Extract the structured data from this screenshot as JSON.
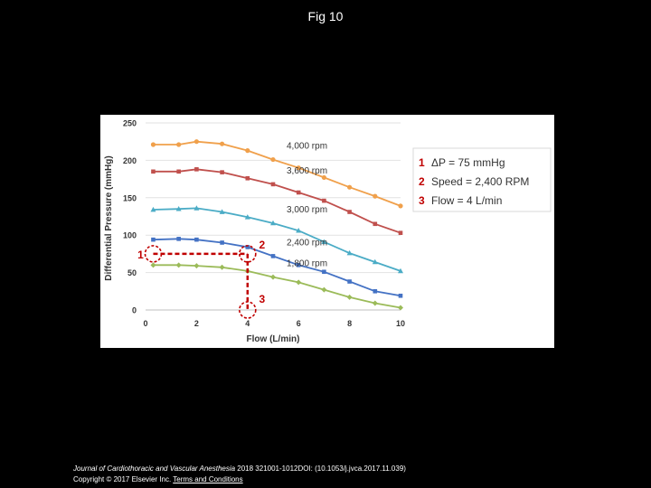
{
  "slide": {
    "title": "Fig 10"
  },
  "footer": {
    "journal": "Journal of Cardiothoracic and Vascular Anesthesia",
    "citation": " 2018 321001-1012DOI: (10.1053/j.jvca.2017.11.039)",
    "copyright": "Copyright © 2017 Elsevier Inc.",
    "terms_link": "Terms and Conditions"
  },
  "chart_data": {
    "type": "line",
    "xlabel": "Flow (L/min)",
    "ylabel": "Differential Pressure (mmHg)",
    "xlim": [
      0,
      10
    ],
    "ylim": [
      0,
      250
    ],
    "xticks": [
      0,
      2,
      4,
      6,
      8,
      10
    ],
    "yticks": [
      0,
      50,
      100,
      150,
      200,
      250
    ],
    "grid": "horizontal",
    "x": [
      0.3,
      1.3,
      2,
      3,
      4,
      5,
      6,
      7,
      8,
      9,
      10
    ],
    "series": [
      {
        "name": "4,000 rpm",
        "color": "#f0a04b",
        "marker": "circle",
        "values": [
          221,
          221,
          225,
          222,
          213,
          201,
          190,
          177,
          164,
          152,
          139
        ]
      },
      {
        "name": "3,600 rpm",
        "color": "#c0504d",
        "marker": "square",
        "values": [
          185,
          185,
          188,
          184,
          176,
          168,
          157,
          146,
          131,
          115,
          103
        ]
      },
      {
        "name": "3,000 rpm",
        "color": "#4bacc6",
        "marker": "triangle",
        "values": [
          134,
          135,
          136,
          131,
          124,
          116,
          106,
          91,
          76,
          64,
          52
        ]
      },
      {
        "name": "2,400 rpm",
        "color": "#4472c4",
        "marker": "square",
        "values": [
          94,
          95,
          94,
          90,
          84,
          72,
          60,
          51,
          38,
          25,
          19
        ]
      },
      {
        "name": "1,800 rpm",
        "color": "#9bbb59",
        "marker": "diamond",
        "values": [
          60,
          60,
          59,
          57,
          52,
          44,
          37,
          27,
          17,
          9,
          3
        ]
      }
    ],
    "annotations": [
      {
        "marker": "1",
        "x": 0.3,
        "y": 75,
        "label": "ΔP = 75 mmHg"
      },
      {
        "marker": "2",
        "x": 4,
        "y": 75,
        "label": "Speed = 2,400 RPM"
      },
      {
        "marker": "3",
        "x": 4,
        "y": 0,
        "label": "Flow = 4 L/min"
      }
    ],
    "annotation_color": "#c00000",
    "legend_position": "right"
  }
}
